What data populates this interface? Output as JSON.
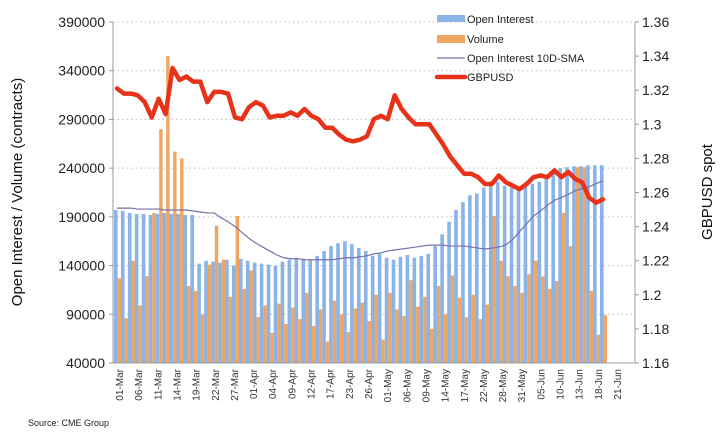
{
  "chart_data": {
    "type": "bar",
    "title": "",
    "ylabel_left": "Open Interest / Volume (contracts)",
    "ylabel_right": "GBPUSD spot",
    "ylim_left": [
      40000,
      390000
    ],
    "yticks_left": [
      40000,
      90000,
      140000,
      190000,
      240000,
      290000,
      340000,
      390000
    ],
    "ylim_right": [
      1.16,
      1.36
    ],
    "yticks_right": [
      "1.16",
      "1.18",
      "1.2",
      "1.22",
      "1.24",
      "1.26",
      "1.28",
      "1.3",
      "1.32",
      "1.34",
      "1.36"
    ],
    "x_tick_labels": [
      "01-Mar",
      "06-Mar",
      "11-Mar",
      "14-Mar",
      "19-Mar",
      "22-Mar",
      "27-Mar",
      "01-Apr",
      "04-Apr",
      "09-Apr",
      "12-Apr",
      "17-Apr",
      "23-Apr",
      "26-Apr",
      "01-May",
      "06-May",
      "09-May",
      "14-May",
      "17-May",
      "22-May",
      "28-May",
      "31-May",
      "05-Jun",
      "10-Jun",
      "13-Jun",
      "18-Jun",
      "21-Jun"
    ],
    "grid": "horizontal dotted",
    "legend_position": "top-right",
    "series": [
      {
        "name": "Open Interest",
        "kind": "bar",
        "color": "#8ab4e8",
        "axis": "left",
        "values": [
          197000,
          196000,
          194000,
          193000,
          193000,
          192000,
          193000,
          194000,
          193000,
          193000,
          192000,
          192000,
          142000,
          145000,
          144000,
          143000,
          146000,
          140000,
          147000,
          145000,
          143000,
          142000,
          141000,
          140000,
          144000,
          146000,
          148000,
          147000,
          146000,
          150000,
          155000,
          160000,
          163000,
          165000,
          162000,
          158000,
          155000,
          150000,
          152000,
          148000,
          146000,
          149000,
          151000,
          148000,
          150000,
          152000,
          160000,
          172000,
          185000,
          197000,
          205000,
          212000,
          214000,
          220000,
          226000,
          226000,
          222000,
          220000,
          218000,
          222000,
          224000,
          226000,
          232000,
          236000,
          240000,
          241000,
          242000,
          242000,
          243000,
          243000,
          243000
        ]
      },
      {
        "name": "Volume",
        "kind": "bar",
        "color": "#f0a561",
        "axis": "left",
        "values": [
          127000,
          86000,
          145000,
          99000,
          129000,
          194000,
          280000,
          355000,
          257000,
          250000,
          119000,
          114000,
          90000,
          141000,
          181000,
          146000,
          108000,
          191000,
          116000,
          135000,
          87000,
          99000,
          71000,
          101000,
          80000,
          97000,
          85000,
          112000,
          78000,
          95000,
          62000,
          104000,
          90000,
          72000,
          96000,
          102000,
          83000,
          110000,
          64000,
          112000,
          95000,
          88000,
          125000,
          98000,
          108000,
          75000,
          119000,
          90000,
          130000,
          107000,
          87000,
          110000,
          85000,
          100000,
          191000,
          145000,
          129000,
          119000,
          112000,
          131000,
          145000,
          129000,
          116000,
          124000,
          194000,
          160000,
          241000,
          241000,
          114000,
          69000,
          89000
        ]
      },
      {
        "name": "Open Interest 10D-SMA",
        "kind": "line",
        "color": "#7b6fa8",
        "axis": "left",
        "values": [
          199000,
          199000,
          199000,
          198000,
          198000,
          198000,
          198000,
          197000,
          197000,
          197000,
          197000,
          196000,
          195000,
          194000,
          194000,
          189000,
          185000,
          180000,
          174000,
          168000,
          163000,
          159000,
          155000,
          151000,
          148000,
          147000,
          147000,
          146000,
          146000,
          146000,
          146000,
          146000,
          147000,
          148000,
          148000,
          149000,
          150000,
          152000,
          153000,
          155000,
          156000,
          157000,
          158000,
          159000,
          160000,
          161000,
          161000,
          161000,
          160000,
          160000,
          160000,
          159000,
          158000,
          157000,
          158000,
          159000,
          161000,
          167000,
          175000,
          183000,
          191000,
          196000,
          202000,
          207000,
          210000,
          213000,
          217000,
          219000,
          221000,
          224000,
          227000
        ]
      },
      {
        "name": "GBPUSD",
        "kind": "line",
        "color": "#e8321a",
        "axis": "right",
        "values": [
          1.321,
          1.318,
          1.318,
          1.317,
          1.313,
          1.304,
          1.315,
          1.306,
          1.333,
          1.326,
          1.328,
          1.325,
          1.325,
          1.313,
          1.319,
          1.319,
          1.318,
          1.304,
          1.303,
          1.31,
          1.313,
          1.311,
          1.304,
          1.305,
          1.305,
          1.307,
          1.305,
          1.309,
          1.305,
          1.303,
          1.298,
          1.298,
          1.294,
          1.291,
          1.29,
          1.291,
          1.293,
          1.303,
          1.305,
          1.303,
          1.317,
          1.309,
          1.304,
          1.3,
          1.3,
          1.3,
          1.294,
          1.288,
          1.281,
          1.276,
          1.271,
          1.271,
          1.269,
          1.265,
          1.265,
          1.27,
          1.266,
          1.264,
          1.262,
          1.265,
          1.269,
          1.27,
          1.269,
          1.273,
          1.269,
          1.272,
          1.268,
          1.266,
          1.257,
          1.254,
          1.256
        ]
      }
    ]
  },
  "source": "Source: CME Group"
}
